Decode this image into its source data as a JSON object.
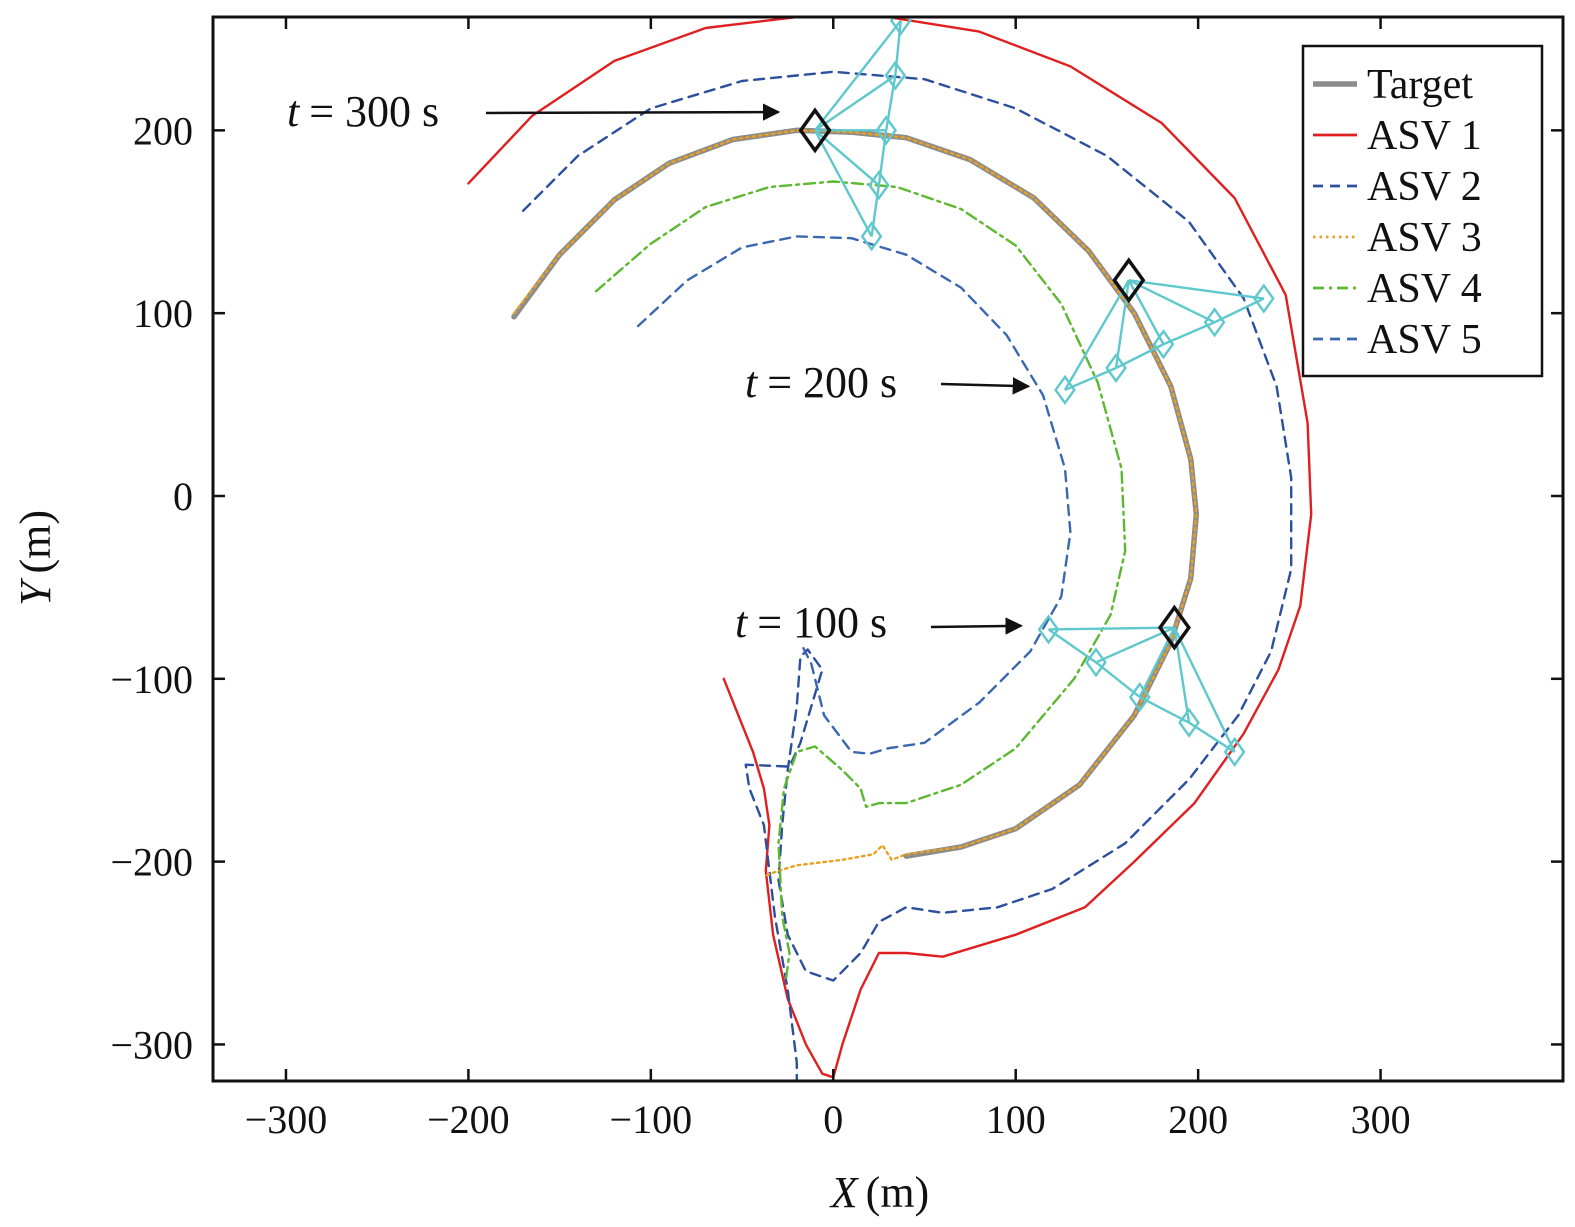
{
  "chart_data": {
    "type": "line",
    "title": "",
    "xlabel": {
      "symbol": "X",
      "unit": "(m)"
    },
    "ylabel": {
      "symbol": "Y",
      "unit": "(m)"
    },
    "xlim": [
      -340,
      400
    ],
    "ylim": [
      -320,
      262
    ],
    "xticks": [
      -300,
      -200,
      -100,
      0,
      100,
      200,
      300
    ],
    "yticks": [
      -300,
      -200,
      -100,
      0,
      100,
      200
    ],
    "xtick_labels": [
      "−300",
      "−200",
      "−100",
      "0",
      "100",
      "200",
      "300"
    ],
    "ytick_labels": [
      "−300",
      "−200",
      "−100",
      "0",
      "100",
      "200"
    ],
    "grid": false,
    "legend_position": "top-right",
    "series": [
      {
        "name": "Target",
        "color": "#8c8c8c",
        "style": "solid",
        "points": [
          [
            -175,
            98
          ],
          [
            -150,
            132
          ],
          [
            -120,
            162
          ],
          [
            -90,
            182
          ],
          [
            -55,
            195
          ],
          [
            -20,
            200
          ],
          [
            10,
            199
          ],
          [
            40,
            196
          ],
          [
            75,
            184
          ],
          [
            110,
            163
          ],
          [
            140,
            134
          ],
          [
            165,
            100
          ],
          [
            185,
            60
          ],
          [
            196,
            20
          ],
          [
            199,
            -10
          ],
          [
            196,
            -45
          ],
          [
            185,
            -80
          ],
          [
            165,
            -120
          ],
          [
            135,
            -158
          ],
          [
            100,
            -182
          ],
          [
            70,
            -192
          ],
          [
            40,
            -197
          ]
        ]
      },
      {
        "name": "ASV 1",
        "color": "#e02020",
        "style": "solid",
        "points": [
          [
            -200,
            171
          ],
          [
            -165,
            208
          ],
          [
            -120,
            238
          ],
          [
            -70,
            256
          ],
          [
            -20,
            262
          ],
          [
            30,
            262
          ],
          [
            80,
            254
          ],
          [
            130,
            235
          ],
          [
            180,
            204
          ],
          [
            220,
            163
          ],
          [
            248,
            110
          ],
          [
            260,
            40
          ],
          [
            262,
            -10
          ],
          [
            256,
            -60
          ],
          [
            244,
            -95
          ],
          [
            225,
            -130
          ],
          [
            198,
            -168
          ],
          [
            165,
            -200
          ],
          [
            138,
            -225
          ],
          [
            100,
            -240
          ],
          [
            60,
            -252
          ],
          [
            40,
            -250
          ],
          [
            25,
            -250
          ],
          [
            15,
            -270
          ],
          [
            5,
            -300
          ],
          [
            0,
            -318
          ],
          [
            -6,
            -316
          ],
          [
            -15,
            -300
          ],
          [
            -25,
            -275
          ],
          [
            -33,
            -240
          ],
          [
            -37,
            -205
          ],
          [
            -35,
            -180
          ],
          [
            -38,
            -160
          ],
          [
            -44,
            -140
          ],
          [
            -52,
            -120
          ],
          [
            -60,
            -100
          ]
        ]
      },
      {
        "name": "ASV 2",
        "color": "#2c4f9e",
        "style": "dashed",
        "points": [
          [
            -170,
            156
          ],
          [
            -140,
            186
          ],
          [
            -100,
            212
          ],
          [
            -50,
            227
          ],
          [
            0,
            232
          ],
          [
            50,
            228
          ],
          [
            100,
            212
          ],
          [
            150,
            186
          ],
          [
            195,
            150
          ],
          [
            225,
            108
          ],
          [
            243,
            60
          ],
          [
            251,
            10
          ],
          [
            251,
            -40
          ],
          [
            240,
            -85
          ],
          [
            222,
            -120
          ],
          [
            195,
            -155
          ],
          [
            160,
            -190
          ],
          [
            120,
            -215
          ],
          [
            90,
            -225
          ],
          [
            60,
            -228
          ],
          [
            40,
            -225
          ],
          [
            25,
            -233
          ],
          [
            15,
            -250
          ],
          [
            0,
            -265
          ],
          [
            -15,
            -260
          ],
          [
            -25,
            -240
          ],
          [
            -30,
            -210
          ],
          [
            -28,
            -180
          ],
          [
            -25,
            -150
          ],
          [
            -20,
            -115
          ],
          [
            -18,
            -88
          ],
          [
            -14,
            -84
          ],
          [
            -6,
            -95
          ],
          [
            -18,
            -135
          ],
          [
            -24,
            -148
          ],
          [
            -48,
            -147
          ],
          [
            -46,
            -160
          ],
          [
            -38,
            -180
          ],
          [
            -32,
            -230
          ],
          [
            -25,
            -270
          ],
          [
            -20,
            -310
          ],
          [
            -20,
            -320
          ]
        ]
      },
      {
        "name": "ASV 3",
        "color": "#e8a020",
        "style": "dotted",
        "points": [
          [
            -175,
            100
          ],
          [
            -150,
            132
          ],
          [
            -120,
            162
          ],
          [
            -90,
            182
          ],
          [
            -55,
            195
          ],
          [
            -20,
            200
          ],
          [
            10,
            199
          ],
          [
            40,
            196
          ],
          [
            75,
            184
          ],
          [
            110,
            163
          ],
          [
            140,
            134
          ],
          [
            165,
            100
          ],
          [
            185,
            60
          ],
          [
            196,
            20
          ],
          [
            199,
            -10
          ],
          [
            196,
            -45
          ],
          [
            185,
            -80
          ],
          [
            165,
            -120
          ],
          [
            135,
            -158
          ],
          [
            100,
            -182
          ],
          [
            70,
            -192
          ],
          [
            40,
            -196
          ],
          [
            32,
            -199
          ],
          [
            27,
            -191
          ],
          [
            22,
            -196
          ],
          [
            5,
            -199
          ],
          [
            -20,
            -202
          ],
          [
            -30,
            -205
          ],
          [
            -38,
            -208
          ]
        ]
      },
      {
        "name": "ASV 4",
        "color": "#5cb830",
        "style": "dashdot",
        "points": [
          [
            -130,
            112
          ],
          [
            -100,
            138
          ],
          [
            -70,
            158
          ],
          [
            -35,
            169
          ],
          [
            0,
            172
          ],
          [
            35,
            169
          ],
          [
            70,
            157
          ],
          [
            100,
            137
          ],
          [
            125,
            105
          ],
          [
            145,
            62
          ],
          [
            158,
            15
          ],
          [
            160,
            -30
          ],
          [
            152,
            -65
          ],
          [
            132,
            -100
          ],
          [
            100,
            -138
          ],
          [
            70,
            -158
          ],
          [
            40,
            -168
          ],
          [
            25,
            -168
          ],
          [
            18,
            -170
          ],
          [
            15,
            -160
          ],
          [
            5,
            -150
          ],
          [
            -10,
            -137
          ],
          [
            -20,
            -140
          ],
          [
            -27,
            -160
          ],
          [
            -30,
            -190
          ],
          [
            -28,
            -230
          ],
          [
            -24,
            -250
          ],
          [
            -26,
            -265
          ]
        ]
      },
      {
        "name": "ASV 5",
        "color": "#3a68b0",
        "style": "dashed",
        "points": [
          [
            -107,
            93
          ],
          [
            -80,
            118
          ],
          [
            -50,
            136
          ],
          [
            -20,
            142
          ],
          [
            10,
            141
          ],
          [
            40,
            132
          ],
          [
            70,
            114
          ],
          [
            95,
            88
          ],
          [
            115,
            55
          ],
          [
            127,
            15
          ],
          [
            130,
            -20
          ],
          [
            125,
            -55
          ],
          [
            108,
            -85
          ],
          [
            80,
            -113
          ],
          [
            50,
            -135
          ],
          [
            30,
            -138
          ],
          [
            20,
            -141
          ],
          [
            10,
            -140
          ],
          [
            -5,
            -120
          ],
          [
            -12,
            -92
          ],
          [
            -17,
            -82
          ]
        ]
      }
    ],
    "annotations": [
      {
        "label": "t = 300 s",
        "symbol": "t",
        "rest": "= 300 s",
        "arrow_to": [
          -30,
          210
        ]
      },
      {
        "label": "t = 200 s",
        "symbol": "t",
        "rest": "= 200 s",
        "arrow_to": [
          107,
          60
        ]
      },
      {
        "label": "t = 100 s",
        "symbol": "t",
        "rest": "= 100 s",
        "arrow_to": [
          103,
          -71
        ]
      }
    ],
    "formations": [
      {
        "time": "t = 100 s",
        "leader": [
          187,
          -72
        ],
        "members": [
          [
            118,
            -73
          ],
          [
            144,
            -91
          ],
          [
            168,
            -110
          ],
          [
            195,
            -124
          ],
          [
            220,
            -140
          ]
        ],
        "links": [
          [
            "L",
            0
          ],
          [
            "L",
            1
          ],
          [
            "L",
            2
          ],
          [
            "L",
            3
          ],
          [
            "L",
            4
          ],
          [
            0,
            1
          ],
          [
            1,
            2
          ],
          [
            2,
            3
          ],
          [
            3,
            4
          ]
        ]
      },
      {
        "time": "t = 200 s",
        "leader": [
          162,
          118
        ],
        "members": [
          [
            236,
            108
          ],
          [
            209,
            95
          ],
          [
            181,
            83
          ],
          [
            155,
            70
          ],
          [
            127,
            58
          ]
        ],
        "links": [
          [
            "L",
            0
          ],
          [
            "L",
            1
          ],
          [
            "L",
            2
          ],
          [
            "L",
            3
          ],
          [
            "L",
            4
          ],
          [
            0,
            1
          ],
          [
            1,
            2
          ],
          [
            2,
            3
          ],
          [
            3,
            4
          ]
        ]
      },
      {
        "time": "t = 300 s",
        "leader": [
          -10,
          200
        ],
        "members": [
          [
            37,
            260
          ],
          [
            34,
            230
          ],
          [
            29,
            200
          ],
          [
            25,
            170
          ],
          [
            21,
            142
          ]
        ],
        "links": [
          [
            "L",
            0
          ],
          [
            "L",
            1
          ],
          [
            "L",
            2
          ],
          [
            "L",
            3
          ],
          [
            "L",
            4
          ],
          [
            0,
            1
          ],
          [
            1,
            2
          ],
          [
            2,
            3
          ],
          [
            3,
            4
          ]
        ]
      }
    ],
    "colors": {
      "formation": "#5ec8cc",
      "leader": "#111111"
    }
  }
}
